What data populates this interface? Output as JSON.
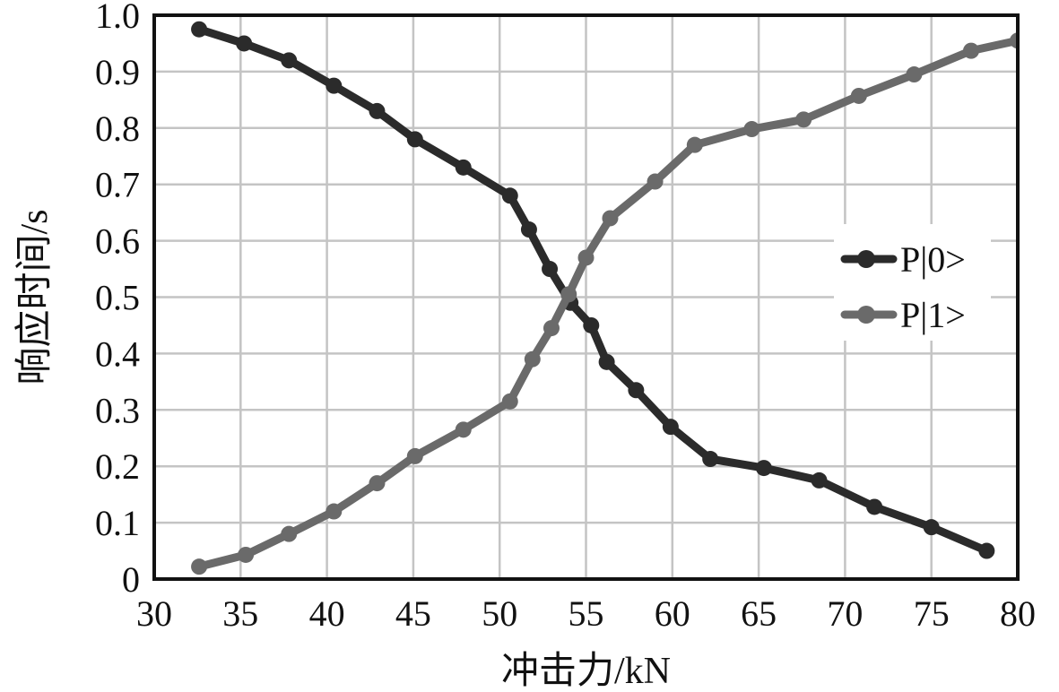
{
  "chart_data": {
    "type": "line",
    "title": "",
    "xlabel": "冲击力/kN",
    "ylabel": "响应时间/s",
    "xlim": [
      30,
      80
    ],
    "ylim": [
      0,
      1.0
    ],
    "x_ticks": [
      "30",
      "35",
      "40",
      "45",
      "50",
      "55",
      "60",
      "65",
      "70",
      "75",
      "80"
    ],
    "y_ticks": [
      "0",
      "0.1",
      "0.2",
      "0.3",
      "0.4",
      "0.5",
      "0.6",
      "0.7",
      "0.8",
      "0.9",
      "1.0"
    ],
    "grid": true,
    "legend_position": "right",
    "series": [
      {
        "name": "P|0>",
        "color": "#2b2b2b",
        "x": [
          32.6,
          35.2,
          37.8,
          40.4,
          42.9,
          45.1,
          47.9,
          50.6,
          51.7,
          52.9,
          54.1,
          55.3,
          56.2,
          57.9,
          59.9,
          62.2,
          65.3,
          68.5,
          71.7,
          75.0,
          78.2
        ],
        "y": [
          0.975,
          0.95,
          0.92,
          0.875,
          0.83,
          0.78,
          0.73,
          0.68,
          0.62,
          0.55,
          0.49,
          0.45,
          0.385,
          0.335,
          0.27,
          0.213,
          0.197,
          0.175,
          0.128,
          0.092,
          0.05
        ]
      },
      {
        "name": "P|1>",
        "color": "#6a6a6a",
        "x": [
          32.6,
          35.3,
          37.8,
          40.4,
          42.9,
          45.1,
          47.9,
          50.6,
          51.9,
          53.0,
          54.0,
          55.0,
          56.4,
          59.0,
          61.3,
          64.6,
          67.6,
          70.8,
          74.0,
          77.3,
          80.0
        ],
        "y": [
          0.022,
          0.043,
          0.08,
          0.12,
          0.17,
          0.218,
          0.265,
          0.315,
          0.39,
          0.445,
          0.505,
          0.57,
          0.64,
          0.705,
          0.77,
          0.798,
          0.815,
          0.857,
          0.895,
          0.937,
          0.955
        ]
      }
    ]
  }
}
